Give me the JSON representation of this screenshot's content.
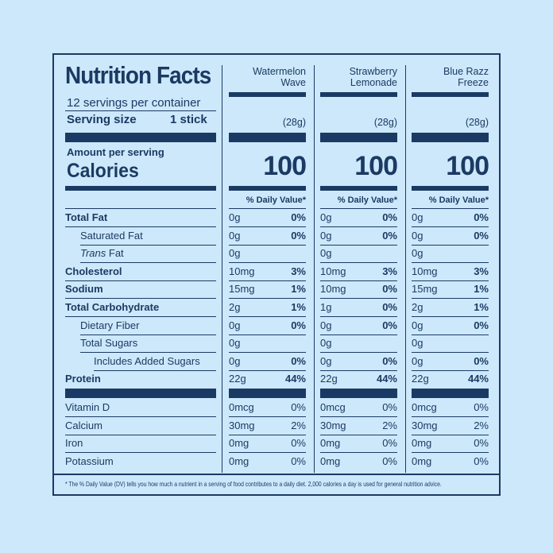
{
  "label": {
    "title": "Nutrition Facts",
    "servings_per_container": "12 servings per container",
    "serving_size_label": "Serving size",
    "serving_size_value": "1 stick",
    "amount_per_serving": "Amount per serving",
    "calories_label": "Calories",
    "dv_header": "% Daily Value*",
    "footnote": "* The % Daily Value (DV) tells you how much a nutrient in a serving of food contributes to a daily diet. 2,000 calories a day is used for general nutrition advice."
  },
  "products": [
    {
      "name_line1": "Watermelon",
      "name_line2": "Wave",
      "weight": "(28g)",
      "calories": "100",
      "rows": [
        {
          "amt": "0g",
          "pct": "0%"
        },
        {
          "amt": "0g",
          "pct": "0%"
        },
        {
          "amt": "0g",
          "pct": ""
        },
        {
          "amt": "10mg",
          "pct": "3%"
        },
        {
          "amt": "15mg",
          "pct": "1%"
        },
        {
          "amt": "2g",
          "pct": "1%"
        },
        {
          "amt": "0g",
          "pct": "0%"
        },
        {
          "amt": "0g",
          "pct": ""
        },
        {
          "amt": "0g",
          "pct": "0%"
        },
        {
          "amt": "22g",
          "pct": "44%"
        }
      ],
      "vitamins": [
        {
          "amt": "0mcg",
          "pct": "0%"
        },
        {
          "amt": "30mg",
          "pct": "2%"
        },
        {
          "amt": "0mg",
          "pct": "0%"
        },
        {
          "amt": "0mg",
          "pct": "0%"
        }
      ]
    },
    {
      "name_line1": "Strawberry",
      "name_line2": "Lemonade",
      "weight": "(28g)",
      "calories": "100",
      "rows": [
        {
          "amt": "0g",
          "pct": "0%"
        },
        {
          "amt": "0g",
          "pct": "0%"
        },
        {
          "amt": "0g",
          "pct": ""
        },
        {
          "amt": "10mg",
          "pct": "3%"
        },
        {
          "amt": "10mg",
          "pct": "0%"
        },
        {
          "amt": "1g",
          "pct": "0%"
        },
        {
          "amt": "0g",
          "pct": "0%"
        },
        {
          "amt": "0g",
          "pct": ""
        },
        {
          "amt": "0g",
          "pct": "0%"
        },
        {
          "amt": "22g",
          "pct": "44%"
        }
      ],
      "vitamins": [
        {
          "amt": "0mcg",
          "pct": "0%"
        },
        {
          "amt": "30mg",
          "pct": "2%"
        },
        {
          "amt": "0mg",
          "pct": "0%"
        },
        {
          "amt": "0mg",
          "pct": "0%"
        }
      ]
    },
    {
      "name_line1": "Blue Razz",
      "name_line2": "Freeze",
      "weight": "(28g)",
      "calories": "100",
      "rows": [
        {
          "amt": "0g",
          "pct": "0%"
        },
        {
          "amt": "0g",
          "pct": "0%"
        },
        {
          "amt": "0g",
          "pct": ""
        },
        {
          "amt": "10mg",
          "pct": "3%"
        },
        {
          "amt": "15mg",
          "pct": "1%"
        },
        {
          "amt": "2g",
          "pct": "1%"
        },
        {
          "amt": "0g",
          "pct": "0%"
        },
        {
          "amt": "0g",
          "pct": ""
        },
        {
          "amt": "0g",
          "pct": "0%"
        },
        {
          "amt": "22g",
          "pct": "44%"
        }
      ],
      "vitamins": [
        {
          "amt": "0mcg",
          "pct": "0%"
        },
        {
          "amt": "30mg",
          "pct": "2%"
        },
        {
          "amt": "0mg",
          "pct": "0%"
        },
        {
          "amt": "0mg",
          "pct": "0%"
        }
      ]
    }
  ],
  "nutrients": [
    {
      "label": "Total Fat",
      "bold": true
    },
    {
      "label": "Saturated Fat",
      "indent": 1
    },
    {
      "label_italic": "Trans",
      "label": " Fat",
      "indent": 1
    },
    {
      "label": "Cholesterol",
      "bold": true
    },
    {
      "label": "Sodium",
      "bold": true
    },
    {
      "label": "Total Carbohydrate",
      "bold": true
    },
    {
      "label": "Dietary Fiber",
      "indent": 1
    },
    {
      "label": "Total Sugars",
      "indent": 1
    },
    {
      "label": "Includes Added Sugars",
      "indent": 2
    },
    {
      "label": "Protein",
      "bold": true
    }
  ],
  "vitamins": [
    {
      "label": "Vitamin D"
    },
    {
      "label": "Calcium"
    },
    {
      "label": "Iron"
    },
    {
      "label": "Potassium"
    }
  ]
}
